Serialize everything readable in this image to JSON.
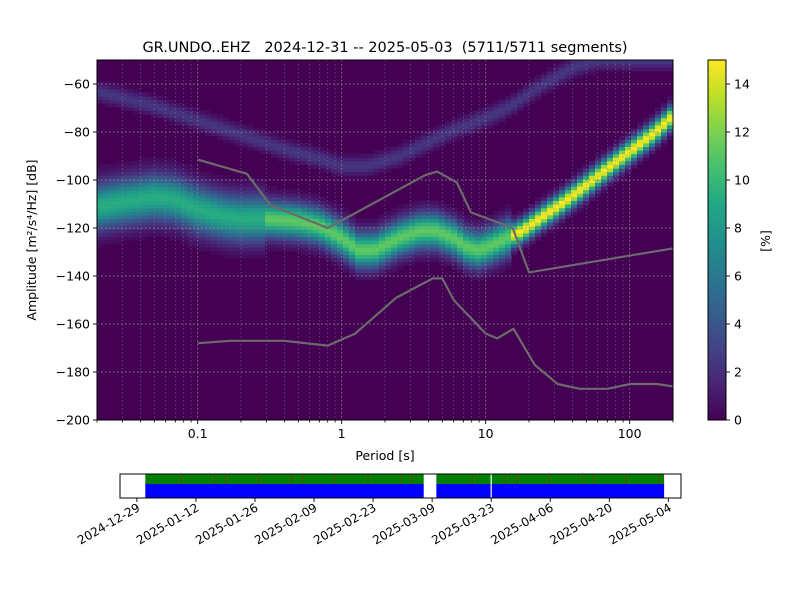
{
  "chart_data": [
    {
      "type": "heatmap",
      "title": "GR.UNDO..EHZ   2024-12-31 -- 2025-05-03  (5711/5711 segments)",
      "xlabel": "Period [s]",
      "ylabel": "Amplitude [m²/s⁴/Hz] [dB]",
      "x_scale": "log",
      "xlim": [
        0.02,
        200
      ],
      "ylim": [
        -200,
        -50
      ],
      "x_ticks": [
        0.1,
        1,
        10,
        100
      ],
      "x_tick_labels": [
        "0.1",
        "1",
        "10",
        "100"
      ],
      "y_ticks": [
        -200,
        -180,
        -160,
        -140,
        -120,
        -100,
        -80,
        -60
      ],
      "y_tick_labels": [
        "−200",
        "−180",
        "−160",
        "−140",
        "−120",
        "−100",
        "−80",
        "−60"
      ],
      "grid": true,
      "colormap": "viridis",
      "colorbar": {
        "label": "[%]",
        "range": [
          0,
          15
        ],
        "ticks": [
          0,
          2,
          4,
          6,
          8,
          10,
          12,
          14
        ],
        "tick_labels": [
          "0",
          "2",
          "4",
          "6",
          "8",
          "10",
          "12",
          "14"
        ]
      },
      "mode_ridge": {
        "period": [
          0.02,
          0.03,
          0.05,
          0.07,
          0.1,
          0.15,
          0.2,
          0.3,
          0.5,
          0.7,
          1.0,
          1.3,
          1.7,
          2.5,
          3.5,
          4.5,
          6.0,
          7.5,
          9.0,
          11.0,
          14.0,
          18.0,
          25.0,
          35.0,
          50.0,
          70.0,
          100.0,
          150.0,
          200.0
        ],
        "db": [
          -111,
          -109,
          -107,
          -108,
          -112,
          -115,
          -116,
          -116,
          -117,
          -119,
          -124,
          -129,
          -129,
          -124,
          -121,
          -121,
          -124,
          -128,
          -129,
          -127,
          -124,
          -121,
          -115,
          -109,
          -102,
          -95,
          -88,
          -80,
          -73
        ]
      },
      "peak_percent": 15,
      "diffuse_band": {
        "period": [
          0.02,
          0.05,
          0.1,
          0.2,
          0.4,
          0.7,
          1.0,
          1.5,
          2.5,
          4.0,
          6.0,
          10.0,
          15.0,
          25.0,
          40.0,
          60.0,
          100.0,
          200.0
        ],
        "db": [
          -63,
          -69,
          -75,
          -81,
          -87,
          -91,
          -94,
          -94,
          -90,
          -84,
          -79,
          -74,
          -69,
          -60,
          -53,
          -50,
          -50,
          -50
        ]
      },
      "noise_model_curves": [
        {
          "period": [
            0.1,
            0.17,
            0.4,
            0.8,
            1.24,
            2.4,
            4.3,
            5.0,
            6.0,
            10.0,
            12.0,
            15.6,
            21.9,
            31.6,
            45.0,
            70.0,
            101.0,
            154.0,
            200.0
          ],
          "db": [
            -168,
            -167,
            -167,
            -169,
            -164,
            -149,
            -141,
            -141,
            -150,
            -164,
            -166,
            -162,
            -177,
            -185,
            -187,
            -187,
            -185,
            -185,
            -186
          ]
        },
        {
          "period": [
            0.1,
            0.22,
            0.32,
            0.8,
            3.8,
            4.6,
            6.3,
            7.9,
            15.4,
            20.0,
            200.0
          ],
          "db": [
            -91.5,
            -97.4,
            -110.5,
            -120.0,
            -98.0,
            -96.5,
            -101.0,
            -113.5,
            -120.0,
            -138.5,
            -128.5
          ]
        }
      ]
    },
    {
      "type": "timeline",
      "x_ticks": [
        "2024-12-29",
        "2025-01-12",
        "2025-01-26",
        "2025-02-09",
        "2025-02-23",
        "2025-03-09",
        "2025-03-23",
        "2025-04-06",
        "2025-04-20",
        "2025-05-04"
      ],
      "xlim": [
        "2024-12-25",
        "2025-05-07"
      ],
      "coverage": [
        {
          "start": "2024-12-31",
          "end": "2025-03-07"
        },
        {
          "start": "2025-03-10",
          "end": "2025-05-03"
        }
      ],
      "gap_ticks": [
        "2025-03-23"
      ],
      "colors": {
        "data": "#0000ff",
        "used": "#008000",
        "flag": "#ff0000"
      }
    }
  ]
}
